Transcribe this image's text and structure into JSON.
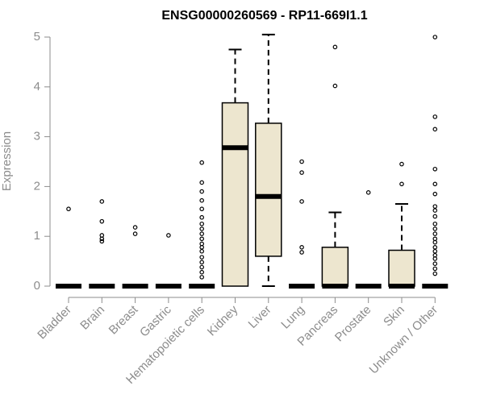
{
  "chart_data": {
    "type": "box",
    "title": "ENSG00000260569 - RP11-669I1.1",
    "ylabel": "Expression",
    "xlabel": "",
    "ylim": [
      0,
      5
    ],
    "yticks": [
      0,
      1,
      2,
      3,
      4,
      5
    ],
    "grid": false,
    "categories": [
      "Bladder",
      "Brain",
      "Breast",
      "Gastric",
      "Hematopoietic cells",
      "Kidney",
      "Liver",
      "Lung",
      "Pancreas",
      "Prostate",
      "Skin",
      "Unknown / Other"
    ],
    "boxes": [
      {
        "category": "Bladder",
        "whisker_low": 0,
        "q1": 0,
        "median": 0,
        "q3": 0,
        "whisker_high": 0,
        "outliers": [
          1.55
        ]
      },
      {
        "category": "Brain",
        "whisker_low": 0,
        "q1": 0,
        "median": 0,
        "q3": 0,
        "whisker_high": 0,
        "outliers": [
          1.7,
          1.3,
          1.02,
          0.95,
          0.9
        ]
      },
      {
        "category": "Breast",
        "whisker_low": 0,
        "q1": 0,
        "median": 0,
        "q3": 0,
        "whisker_high": 0,
        "outliers": [
          1.18,
          1.05
        ]
      },
      {
        "category": "Gastric",
        "whisker_low": 0,
        "q1": 0,
        "median": 0,
        "q3": 0,
        "whisker_high": 0,
        "outliers": [
          1.02
        ]
      },
      {
        "category": "Hematopoietic cells",
        "whisker_low": 0,
        "q1": 0,
        "median": 0,
        "q3": 0,
        "whisker_high": 0,
        "outliers": [
          2.48,
          2.08,
          1.9,
          1.72,
          1.55,
          1.38,
          1.25,
          1.15,
          1.05,
          0.95,
          0.85,
          0.78,
          0.7,
          0.58,
          0.48,
          0.38,
          0.28,
          0.18
        ]
      },
      {
        "category": "Kidney",
        "whisker_low": 0,
        "q1": 0,
        "median": 2.78,
        "q3": 3.68,
        "whisker_high": 4.75,
        "outliers": []
      },
      {
        "category": "Liver",
        "whisker_low": 0,
        "q1": 0.6,
        "median": 1.8,
        "q3": 3.27,
        "whisker_high": 5.05,
        "outliers": []
      },
      {
        "category": "Lung",
        "whisker_low": 0,
        "q1": 0,
        "median": 0,
        "q3": 0,
        "whisker_high": 0,
        "outliers": [
          2.5,
          2.28,
          1.7,
          0.78,
          0.68
        ]
      },
      {
        "category": "Pancreas",
        "whisker_low": 0,
        "q1": 0,
        "median": 0,
        "q3": 0.78,
        "whisker_high": 1.48,
        "outliers": [
          4.8,
          4.02
        ]
      },
      {
        "category": "Prostate",
        "whisker_low": 0,
        "q1": 0,
        "median": 0,
        "q3": 0,
        "whisker_high": 0,
        "outliers": [
          1.88
        ]
      },
      {
        "category": "Skin",
        "whisker_low": 0,
        "q1": 0,
        "median": 0,
        "q3": 0.72,
        "whisker_high": 1.65,
        "outliers": [
          2.45,
          2.05
        ]
      },
      {
        "category": "Unknown / Other",
        "whisker_low": 0,
        "q1": 0,
        "median": 0,
        "q3": 0,
        "whisker_high": 0,
        "outliers": [
          5.0,
          3.4,
          3.15,
          2.35,
          2.05,
          1.85,
          1.6,
          1.52,
          1.4,
          1.25,
          1.15,
          1.05,
          0.95,
          0.88,
          0.78,
          0.7,
          0.62,
          0.55,
          0.45,
          0.35,
          0.25
        ]
      }
    ],
    "colors": {
      "box_fill": "#ede6cf",
      "box_stroke": "#000000",
      "axis": "#8c8c8c",
      "text": "#8c8c8c",
      "title": "#000000"
    }
  }
}
